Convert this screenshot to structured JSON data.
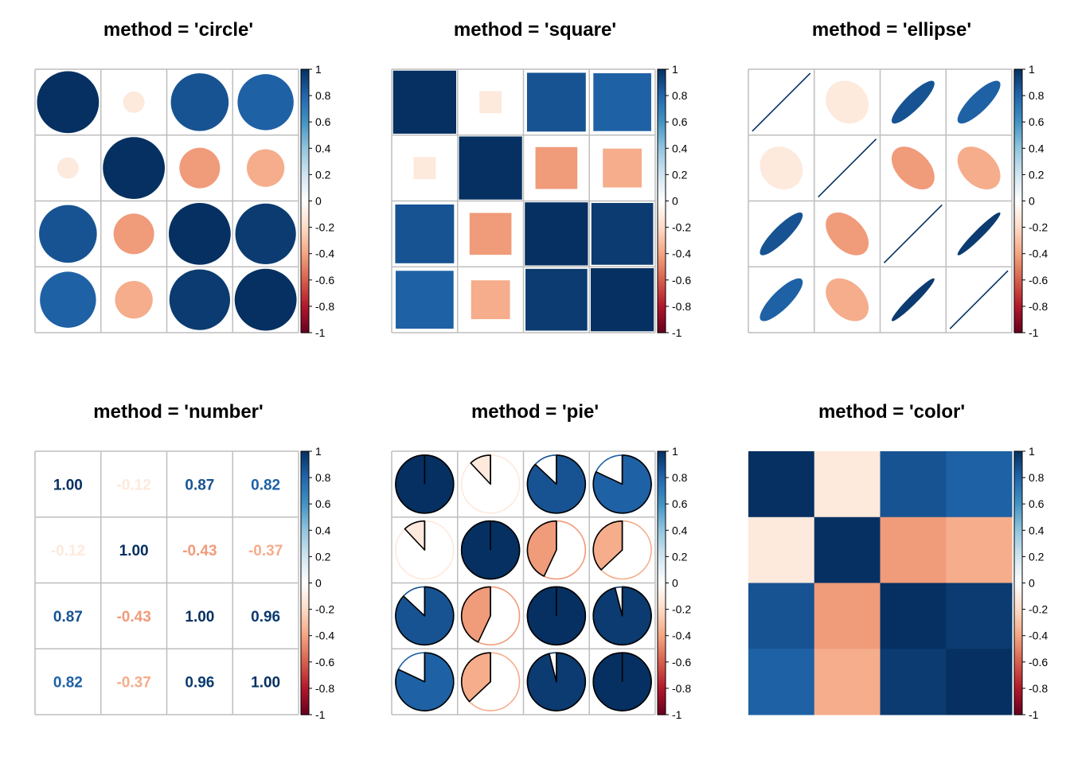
{
  "chart_data": {
    "type": "heatmap",
    "matrix": [
      [
        1.0,
        -0.12,
        0.87,
        0.82
      ],
      [
        -0.12,
        1.0,
        -0.43,
        -0.37
      ],
      [
        0.87,
        -0.43,
        1.0,
        0.96
      ],
      [
        0.82,
        -0.37,
        0.96,
        1.0
      ]
    ],
    "colorbar": {
      "ticks": [
        "1",
        "0.8",
        "0.6",
        "0.4",
        "0.2",
        "0",
        "-0.2",
        "-0.4",
        "-0.6",
        "-0.8",
        "-1"
      ],
      "range": [
        -1,
        1
      ],
      "colors": [
        "#67001F",
        "#B2182B",
        "#D6604D",
        "#F4A582",
        "#FDDBC7",
        "#FFFFFF",
        "#D1E5F0",
        "#92C5DE",
        "#4393C3",
        "#2166AC",
        "#053061"
      ]
    },
    "grid": true,
    "panels": [
      {
        "method": "circle",
        "title": "method = 'circle'"
      },
      {
        "method": "square",
        "title": "method = 'square'"
      },
      {
        "method": "ellipse",
        "title": "method = 'ellipse'"
      },
      {
        "method": "number",
        "title": "method = 'number'"
      },
      {
        "method": "pie",
        "title": "method = 'pie'"
      },
      {
        "method": "color",
        "title": "method = 'color'"
      }
    ]
  }
}
